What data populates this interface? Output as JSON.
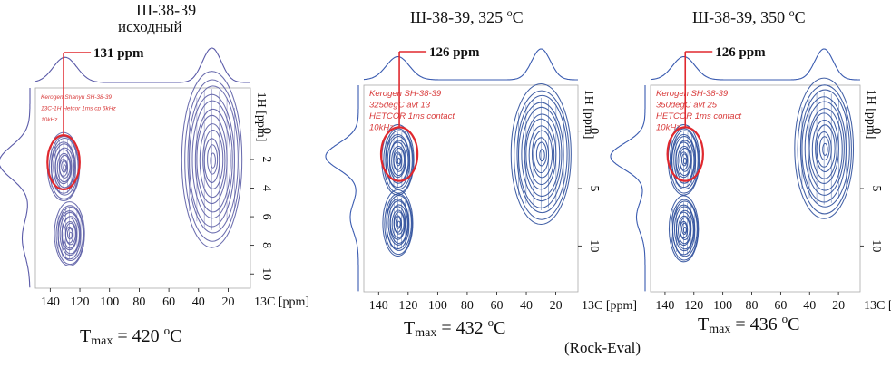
{
  "chart_data": [
    {
      "type": "heatmap",
      "subtype": "2D HETCOR NMR contour plot",
      "title": "Ш-38-39",
      "subtitle": "исходный",
      "inset_text": [
        "Kerogen Shanyu SH-38-39",
        "13C-1H Hetcor 1ms cp 6kHz",
        "10kHz"
      ],
      "xlabel": "13C [ppm]",
      "ylabel": "1H [ppm]",
      "x_range": [
        150,
        5
      ],
      "y_range": [
        -3,
        11
      ],
      "x_ticks": [
        140,
        120,
        100,
        80,
        60,
        40,
        20
      ],
      "y_ticks": [
        0,
        2,
        4,
        6,
        8,
        10
      ],
      "highlight": {
        "label": "131 ppm",
        "x": 131,
        "y": 2.2
      },
      "peaks": [
        {
          "x": 131,
          "y": 2.5,
          "region": "aromatic"
        },
        {
          "x": 127,
          "y": 7.2,
          "region": "aromatic"
        },
        {
          "x": 31,
          "y": 2.0,
          "region": "aliphatic"
        }
      ],
      "tmax_label": "T",
      "tmax_sub": "max",
      "tmax_value": "= 420",
      "tmax_unit_sup": "o",
      "tmax_unit": "C"
    },
    {
      "type": "heatmap",
      "subtype": "2D HETCOR NMR contour plot",
      "title": "Ш-38-39, 325",
      "title_sup": "o",
      "title_unit": "C",
      "inset_text": [
        "Kerogen SH-38-39",
        "325degC avt 13",
        "HETCOR 1ms contact",
        "10kHz"
      ],
      "xlabel": "13C [ppm]",
      "ylabel": "1H [ppm]",
      "x_range": [
        150,
        5
      ],
      "y_range": [
        -4,
        14
      ],
      "x_ticks": [
        140,
        120,
        100,
        80,
        60,
        40,
        20
      ],
      "y_ticks": [
        0,
        5,
        10
      ],
      "highlight": {
        "label": "126 ppm",
        "x": 126,
        "y": 2.0
      },
      "peaks": [
        {
          "x": 127,
          "y": 2.5,
          "region": "aromatic"
        },
        {
          "x": 127,
          "y": 8.0,
          "region": "aromatic"
        },
        {
          "x": 30,
          "y": 2.0,
          "region": "aliphatic"
        }
      ],
      "tmax_label": "T",
      "tmax_sub": "max",
      "tmax_value": "= 432",
      "tmax_unit_sup": "o",
      "tmax_unit": "C"
    },
    {
      "type": "heatmap",
      "subtype": "2D HETCOR NMR contour plot",
      "title": "Ш-38-39, 350",
      "title_sup": "o",
      "title_unit": "C",
      "inset_text": [
        "Kerogen SH-38-39",
        "350degC avt 25",
        "HETCOR 1ms contact",
        "10kHz"
      ],
      "xlabel": "13C [ppm]",
      "ylabel": "1H [ppm]",
      "x_range": [
        150,
        5
      ],
      "y_range": [
        -4,
        14
      ],
      "x_ticks": [
        140,
        120,
        100,
        80,
        60,
        40,
        20
      ],
      "y_ticks": [
        0,
        5,
        10
      ],
      "highlight": {
        "label": "126 ppm",
        "x": 126,
        "y": 2.0
      },
      "peaks": [
        {
          "x": 127,
          "y": 2.5,
          "region": "aromatic"
        },
        {
          "x": 127,
          "y": 8.5,
          "region": "aromatic"
        },
        {
          "x": 30,
          "y": 1.5,
          "region": "aliphatic"
        }
      ],
      "tmax_label": "T",
      "tmax_sub": "max",
      "tmax_value": "= 436",
      "tmax_unit_sup": "o",
      "tmax_unit": "C"
    }
  ],
  "footnote": "(Rock-Eval)",
  "colors": {
    "contour_first": "#5c5ea6",
    "contour": "#2d4f9c",
    "highlight": "#e0282e",
    "inset_text": "#d83a3a",
    "text": "#111111",
    "frame": "#aaaaaa",
    "projection_first": "#5a5aa8",
    "projection": "#3a5bb0"
  }
}
